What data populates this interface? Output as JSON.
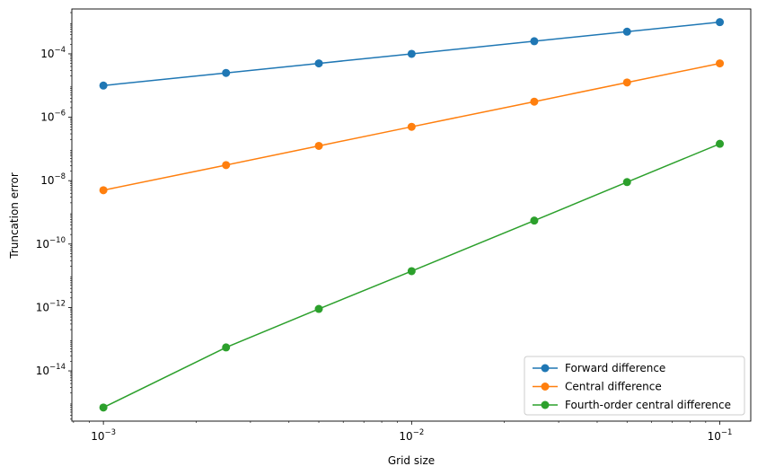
{
  "chart_data": {
    "type": "line",
    "xlabel": "Grid size",
    "ylabel": "Truncation error",
    "x_scale": "log",
    "y_scale": "log",
    "xlim": [
      0.00079,
      0.126
    ],
    "ylim": [
      2.6e-16,
      0.0026
    ],
    "grid": false,
    "legend_position": "lower-right",
    "x": [
      0.001,
      0.0025,
      0.005,
      0.01,
      0.025,
      0.05,
      0.1
    ],
    "x_ticks": [
      {
        "value": 0.001,
        "base": "10",
        "exp": "−3"
      },
      {
        "value": 0.01,
        "base": "10",
        "exp": "−2"
      },
      {
        "value": 0.1,
        "base": "10",
        "exp": "−1"
      }
    ],
    "y_ticks": [
      {
        "value": 1e-14,
        "base": "10",
        "exp": "−14"
      },
      {
        "value": 1e-12,
        "base": "10",
        "exp": "−12"
      },
      {
        "value": 1e-10,
        "base": "10",
        "exp": "−10"
      },
      {
        "value": 1e-08,
        "base": "10",
        "exp": "−8"
      },
      {
        "value": 1e-06,
        "base": "10",
        "exp": "−6"
      },
      {
        "value": 0.0001,
        "base": "10",
        "exp": "−4"
      }
    ],
    "series": [
      {
        "name": "Forward difference",
        "color": "#1f77b4",
        "values": [
          1e-05,
          2.5e-05,
          5e-05,
          0.0001,
          0.00025,
          0.0005,
          0.001
        ]
      },
      {
        "name": "Central difference",
        "color": "#ff7f0e",
        "values": [
          5e-09,
          3.1e-08,
          1.25e-07,
          5e-07,
          3.1e-06,
          1.25e-05,
          5e-05
        ]
      },
      {
        "name": "Fourth-order central difference",
        "color": "#2ca02c",
        "values": [
          7e-16,
          5.5e-14,
          9e-13,
          1.4e-11,
          5.5e-10,
          9e-09,
          1.45e-07
        ]
      }
    ]
  }
}
